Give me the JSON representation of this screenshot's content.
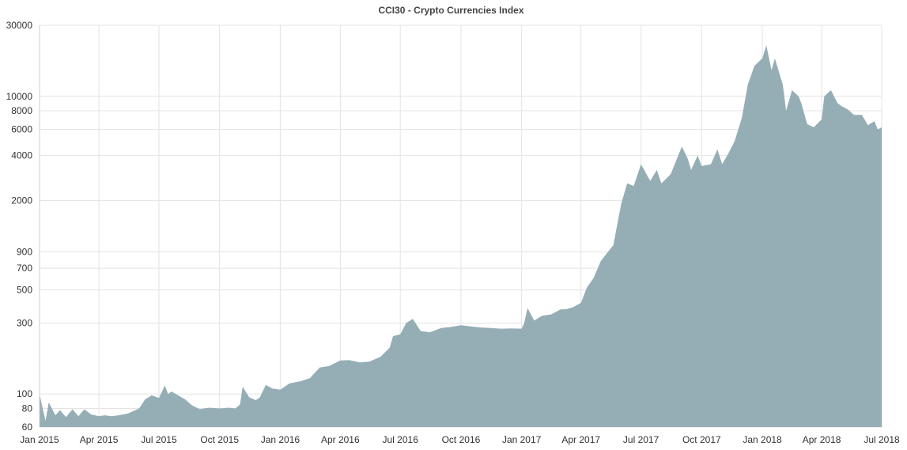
{
  "chart_data": {
    "type": "area",
    "title": "CCI30 - Crypto Currencies Index",
    "xlabel": "",
    "ylabel": "",
    "y_scale": "log",
    "ylim": [
      60,
      30000
    ],
    "xlim": [
      "2015-01-01",
      "2018-07-01"
    ],
    "grid": true,
    "colors": {
      "area": "#95aeb6",
      "grid": "#e3e3e3",
      "text": "#333333"
    },
    "x_ticks": [
      "Jan 2015",
      "Apr 2015",
      "Jul 2015",
      "Oct 2015",
      "Jan 2016",
      "Apr 2016",
      "Jul 2016",
      "Oct 2016",
      "Jan 2017",
      "Apr 2017",
      "Jul 2017",
      "Oct 2017",
      "Jan 2018",
      "Apr 2018",
      "Jul 2018"
    ],
    "y_ticks": [
      "30000",
      "10000",
      "8000",
      "6000",
      "4000",
      "2000",
      "900",
      "700",
      "500",
      "300",
      "100",
      "80",
      "60"
    ],
    "series": [
      {
        "x": [
          "2015-01-01",
          "2015-01-10",
          "2015-01-15",
          "2015-01-25",
          "2015-02-01",
          "2015-02-10",
          "2015-02-20",
          "2015-03-01",
          "2015-03-10",
          "2015-03-20",
          "2015-04-01",
          "2015-04-10",
          "2015-04-20",
          "2015-05-01",
          "2015-05-15",
          "2015-06-01",
          "2015-06-10",
          "2015-06-20",
          "2015-07-01",
          "2015-07-10",
          "2015-07-15",
          "2015-07-20",
          "2015-08-01",
          "2015-08-10",
          "2015-08-20",
          "2015-09-01",
          "2015-09-15",
          "2015-10-01",
          "2015-10-15",
          "2015-10-25",
          "2015-11-01",
          "2015-11-05",
          "2015-11-15",
          "2015-11-25",
          "2015-12-01",
          "2015-12-10",
          "2015-12-20",
          "2016-01-01",
          "2016-01-15",
          "2016-02-01",
          "2016-02-15",
          "2016-03-01",
          "2016-03-15",
          "2016-04-01",
          "2016-04-15",
          "2016-05-01",
          "2016-05-15",
          "2016-06-01",
          "2016-06-15",
          "2016-06-20",
          "2016-07-01",
          "2016-07-10",
          "2016-07-20",
          "2016-08-01",
          "2016-08-15",
          "2016-09-01",
          "2016-09-15",
          "2016-10-01",
          "2016-10-15",
          "2016-11-01",
          "2016-11-15",
          "2016-12-01",
          "2016-12-15",
          "2017-01-01",
          "2017-01-05",
          "2017-01-10",
          "2017-01-20",
          "2017-02-01",
          "2017-02-15",
          "2017-03-01",
          "2017-03-10",
          "2017-03-20",
          "2017-04-01",
          "2017-04-10",
          "2017-04-20",
          "2017-05-01",
          "2017-05-10",
          "2017-05-20",
          "2017-06-01",
          "2017-06-10",
          "2017-06-20",
          "2017-07-01",
          "2017-07-15",
          "2017-07-25",
          "2017-08-01",
          "2017-08-15",
          "2017-09-01",
          "2017-09-10",
          "2017-09-15",
          "2017-09-25",
          "2017-10-01",
          "2017-10-15",
          "2017-10-25",
          "2017-11-01",
          "2017-11-10",
          "2017-11-20",
          "2017-12-01",
          "2017-12-10",
          "2017-12-20",
          "2018-01-01",
          "2018-01-07",
          "2018-01-15",
          "2018-01-20",
          "2018-02-01",
          "2018-02-06",
          "2018-02-15",
          "2018-02-25",
          "2018-03-01",
          "2018-03-10",
          "2018-03-20",
          "2018-04-01",
          "2018-04-05",
          "2018-04-15",
          "2018-04-25",
          "2018-05-01",
          "2018-05-10",
          "2018-05-20",
          "2018-06-01",
          "2018-06-10",
          "2018-06-20",
          "2018-06-25",
          "2018-07-01"
        ],
        "values": [
          100,
          66,
          88,
          72,
          78,
          70,
          79,
          71,
          79,
          73,
          71,
          72,
          71,
          72,
          74,
          80,
          92,
          98,
          94,
          114,
          100,
          104,
          97,
          92,
          84,
          79,
          81,
          80,
          81,
          80,
          85,
          112,
          95,
          91,
          95,
          115,
          109,
          107,
          118,
          122,
          128,
          151,
          154,
          168,
          169,
          163,
          165,
          178,
          205,
          245,
          252,
          300,
          320,
          265,
          260,
          278,
          282,
          290,
          285,
          280,
          278,
          275,
          276,
          275,
          300,
          378,
          312,
          336,
          343,
          370,
          372,
          383,
          410,
          520,
          600,
          780,
          880,
          1000,
          1900,
          2600,
          2500,
          3500,
          2700,
          3200,
          2600,
          3000,
          4600,
          3800,
          3200,
          4000,
          3400,
          3500,
          4400,
          3500,
          4100,
          5000,
          7200,
          12000,
          16000,
          18000,
          22000,
          15000,
          18000,
          12000,
          8000,
          11000,
          10000,
          9000,
          6500,
          6200,
          7000,
          10000,
          11000,
          9000,
          8600,
          8200,
          7500,
          7500,
          6400,
          6800,
          6000,
          6200
        ]
      }
    ]
  }
}
